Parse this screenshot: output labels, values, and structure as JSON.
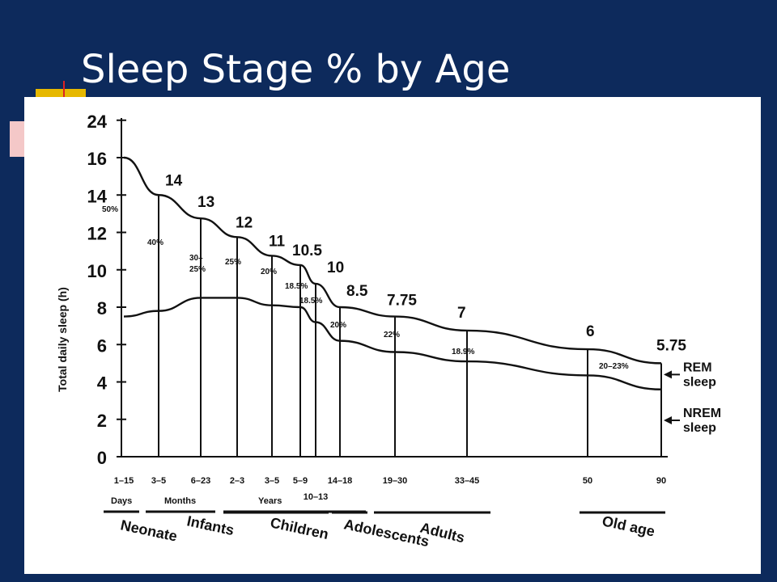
{
  "slide": {
    "title": "Sleep Stage % by Age"
  },
  "chart_data": {
    "type": "line",
    "title": "",
    "ylabel": "Total daily sleep (h)",
    "ylim": [
      0,
      24
    ],
    "yticks": [
      "0",
      "2",
      "4",
      "6",
      "8",
      "10",
      "12",
      "14",
      "16",
      "24"
    ],
    "categories": [
      "1–15",
      "3–5",
      "6–23",
      "2–3",
      "3–5",
      "5–9",
      "10–13",
      "14–18",
      "19–30",
      "33–45",
      "50",
      "90"
    ],
    "series": [
      {
        "name": "REM sleep",
        "values": [
          16,
          14,
          12.75,
          11.75,
          10.75,
          10.25,
          9.25,
          8,
          7.5,
          6.75,
          5.75,
          5
        ]
      },
      {
        "name": "NREM sleep",
        "values": [
          7.5,
          7.8,
          8.5,
          8.5,
          8.1,
          8,
          7.2,
          6.2,
          5.6,
          5.1,
          4.35,
          3.6
        ]
      }
    ],
    "total_labels": [
      "",
      "14",
      "13",
      "12",
      "11",
      "10.5",
      "10",
      "8.5",
      "7.75",
      "7",
      "6",
      "5.75"
    ],
    "rem_percent_labels": [
      "50%",
      "40%",
      "30–25%",
      "25%",
      "20%",
      "18.5%",
      "18.5%",
      "20%",
      "22%",
      "18.9%",
      "20–23%",
      ""
    ],
    "groups": [
      "Days",
      "Months",
      "Years"
    ],
    "stages": [
      "Neonate",
      "Infants",
      "Children",
      "Adolescents",
      "Adults",
      "Old age"
    ],
    "legend": [
      "REM sleep",
      "NREM sleep"
    ]
  }
}
